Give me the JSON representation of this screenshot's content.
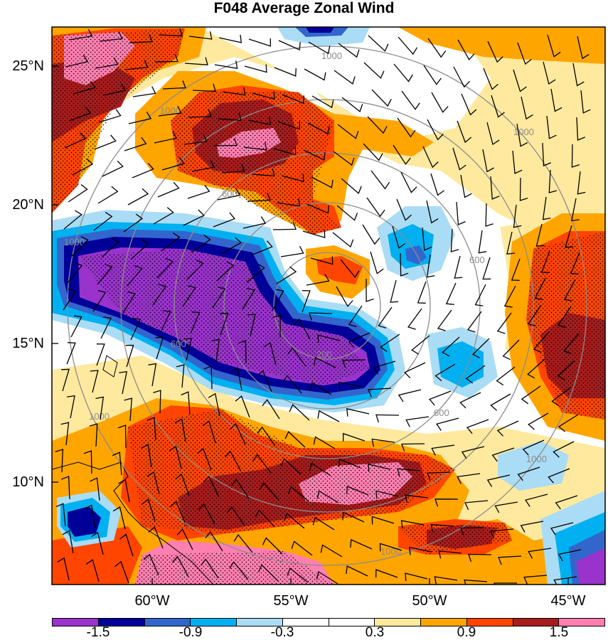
{
  "title": "F048 Average Zonal Wind",
  "lat_labels": [
    {
      "text": "25°N",
      "value": 25
    },
    {
      "text": "20°N",
      "value": 20
    },
    {
      "text": "15°N",
      "value": 15
    },
    {
      "text": "10°N",
      "value": 10
    }
  ],
  "lon_labels": [
    {
      "text": "60°W",
      "value": -60
    },
    {
      "text": "55°W",
      "value": -55
    },
    {
      "text": "50°W",
      "value": -50
    },
    {
      "text": "45°W",
      "value": -45
    }
  ],
  "range_rings": {
    "color": "#8c8c8c",
    "labels": [
      "200",
      "600",
      "600",
      "600",
      "600",
      "1000",
      "1000",
      "1000",
      "1000",
      "1000",
      "1000",
      "1000"
    ]
  },
  "colorbar": {
    "colors": [
      "#9933cc",
      "#000099",
      "#3366cc",
      "#00b0f0",
      "#aadcf5",
      "#ffffff",
      "#ffffff",
      "#ffe99e",
      "#ffa500",
      "#ff4500",
      "#a81c1c",
      "#ff7fb0"
    ],
    "labels": [
      "-1.5",
      "-0.9",
      "-0.3",
      "0.3",
      "0.9",
      "1.5"
    ]
  }
}
